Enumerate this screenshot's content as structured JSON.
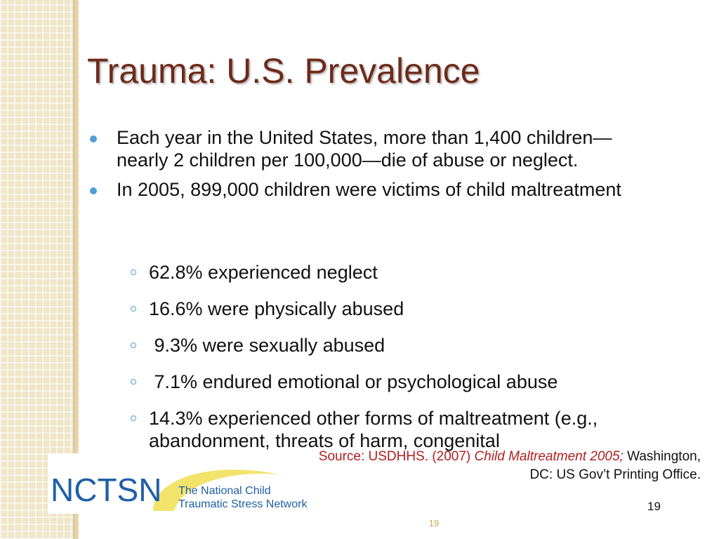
{
  "slide": {
    "title": "Trauma:  U.S. Prevalence",
    "bullets": [
      {
        "text": "Each year in the United States, more than 1,400 children—nearly 2 children per 100,000—die of abuse or neglect."
      },
      {
        "text": "In 2005, 899,000 children were victims of child maltreatment"
      }
    ],
    "sub_bullets": [
      {
        "text": "62.8% experienced neglect"
      },
      {
        "text": "16.6% were physically abused"
      },
      {
        "text": " 9.3% were sexually abused"
      },
      {
        "text": " 7.1% endured emotional or psychological abuse"
      },
      {
        "text": "14.3% experienced other forms of maltreatment (e.g., abandonment, threats of harm, congenital"
      }
    ],
    "source": {
      "prefix": "Source: USDHHS. (2007) ",
      "title_italic": "Child Maltreatment 2005;",
      "suffix": " Washington, DC: US Gov’t Printing Office."
    },
    "slide_number": "19",
    "footer_number": "19"
  },
  "logo": {
    "acronym": "NCTSN",
    "line1": "The National Child",
    "line2": "Traumatic Stress Network",
    "colors": {
      "acronym": "#1f5fa8",
      "swoosh": "#f2e36a",
      "text": "#1f5fa8"
    }
  },
  "colors": {
    "title": "#6e2a1a",
    "bullet": "#4f9ed6",
    "source_red": "#b01e1e",
    "footer_number": "#c8a75a"
  }
}
